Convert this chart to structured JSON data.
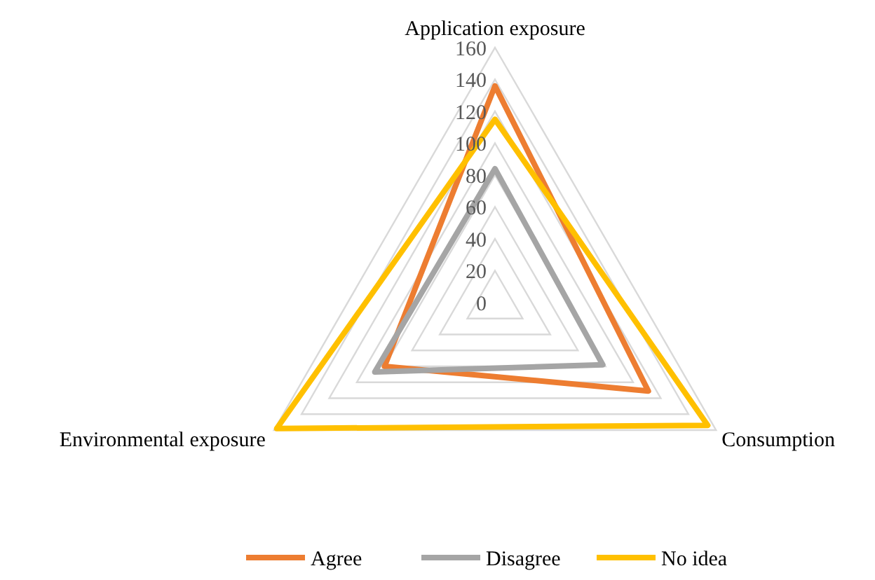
{
  "chart_data": {
    "type": "radar",
    "categories": [
      "Application exposure",
      "Consumption",
      "Environmental exposure"
    ],
    "series": [
      {
        "name": "Agree",
        "color": "#ed7d31",
        "values": [
          136,
          111,
          80
        ]
      },
      {
        "name": "Disagree",
        "color": "#a5a5a5",
        "values": [
          84,
          78,
          87
        ]
      },
      {
        "name": "No idea",
        "color": "#ffc000",
        "values": [
          115,
          154,
          158
        ]
      }
    ],
    "ylim": [
      0,
      160
    ],
    "yticks": [
      0,
      20,
      40,
      60,
      80,
      100,
      120,
      140,
      160
    ],
    "grid": true,
    "legend": "bottom"
  }
}
